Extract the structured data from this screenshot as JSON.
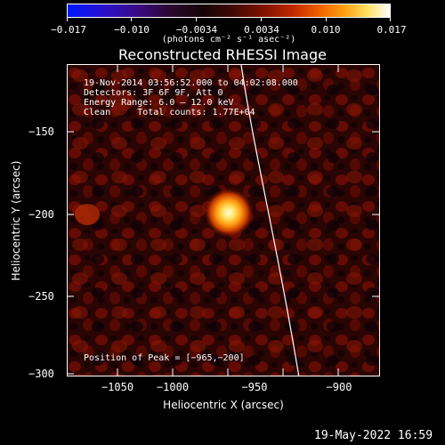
{
  "colorbar": {
    "ticks": [
      "−0.017",
      "−0.010",
      "−0.0034",
      "0.0034",
      "0.010",
      "0.017"
    ],
    "units": "(photons cm⁻² s⁻¹ asec⁻²)"
  },
  "title": "Reconstructed RHESSI Image",
  "info": {
    "time": "19‑Nov‑2014 03:56:52.000 to 04:02:08.000",
    "detectors": "Detectors: 3F 6F 9F, Att 0",
    "energy": "Energy Range: 6.0 – 12.0 keV",
    "clean": "Clean     Total counts: 1.77E+04",
    "peak": "Position of Peak = [−965,−200]"
  },
  "axes": {
    "xlabel": "Heliocentric X (arcsec)",
    "ylabel": "Heliocentric Y (arcsec)",
    "xticks": [
      "−1050",
      "−1000",
      "−950",
      "−900"
    ],
    "yticks": [
      "−150",
      "−200",
      "−250",
      "−300"
    ]
  },
  "chart_data": {
    "type": "heatmap",
    "title": "Reconstructed RHESSI Image",
    "xlabel": "Heliocentric X (arcsec)",
    "ylabel": "Heliocentric Y (arcsec)",
    "xlim": [
      -1065,
      -872
    ],
    "ylim": [
      -303,
      -114
    ],
    "colorbar_range": [
      -0.017,
      0.017
    ],
    "peak": {
      "x": -965,
      "y": -200
    },
    "limb_curve": [
      [
        -973,
        -114
      ],
      [
        -965,
        -160
      ],
      [
        -955,
        -200
      ],
      [
        -945,
        -240
      ],
      [
        -933,
        -280
      ],
      [
        -925,
        -303
      ]
    ]
  },
  "footer": {
    "timestamp": "19‑May‑2022 16:59"
  }
}
